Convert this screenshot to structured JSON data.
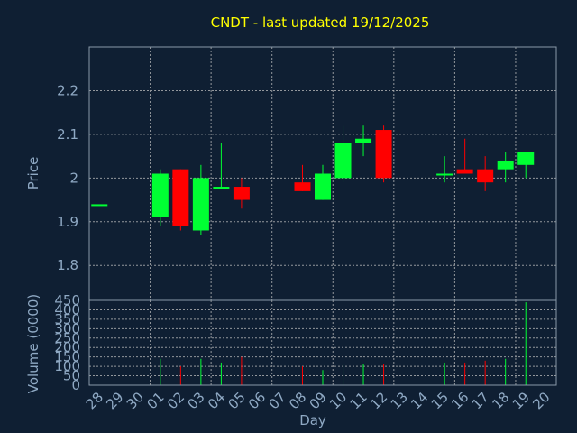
{
  "chart_data": {
    "type": "candlestick",
    "title": "CNDT - last updated 19/12/2025",
    "xlabel": "Day",
    "price_panel": {
      "ylabel": "Price",
      "ylim": [
        1.72,
        2.3
      ],
      "yticks": [
        "1.8",
        "1.9",
        "2",
        "2.1",
        "2.2"
      ],
      "ytick_values": [
        1.8,
        1.9,
        2.0,
        2.1,
        2.2
      ]
    },
    "volume_panel": {
      "ylabel": "Volume (0000)",
      "ylim": [
        0,
        450
      ],
      "yticks": [
        "0",
        "50",
        "100",
        "150",
        "200",
        "250",
        "300",
        "350",
        "400",
        "450"
      ],
      "ytick_values": [
        0,
        50,
        100,
        150,
        200,
        250,
        300,
        350,
        400,
        450
      ]
    },
    "x_labels": [
      "28",
      "29",
      "30",
      "01",
      "02",
      "03",
      "04",
      "05",
      "06",
      "07",
      "08",
      "09",
      "10",
      "11",
      "12",
      "13",
      "14",
      "15",
      "16",
      "17",
      "18",
      "19",
      "20"
    ],
    "candles": [
      {
        "day": "28",
        "open": 1.94,
        "high": 1.94,
        "low": 1.94,
        "close": 1.94,
        "volume": 0
      },
      {
        "day": "01",
        "open": 1.91,
        "high": 2.02,
        "low": 1.89,
        "close": 2.01,
        "volume": 140
      },
      {
        "day": "02",
        "open": 2.02,
        "high": 2.02,
        "low": 1.88,
        "close": 1.89,
        "volume": 100
      },
      {
        "day": "03",
        "open": 1.88,
        "high": 2.03,
        "low": 1.87,
        "close": 2.0,
        "volume": 140
      },
      {
        "day": "04",
        "open": 1.98,
        "high": 2.08,
        "low": 1.98,
        "close": 1.98,
        "volume": 120
      },
      {
        "day": "05",
        "open": 1.98,
        "high": 2.0,
        "low": 1.93,
        "close": 1.95,
        "volume": 150
      },
      {
        "day": "08",
        "open": 1.99,
        "high": 2.03,
        "low": 1.97,
        "close": 1.97,
        "volume": 100
      },
      {
        "day": "09",
        "open": 1.95,
        "high": 2.03,
        "low": 1.95,
        "close": 2.01,
        "volume": 80
      },
      {
        "day": "10",
        "open": 2.0,
        "high": 2.12,
        "low": 1.99,
        "close": 2.08,
        "volume": 110
      },
      {
        "day": "11",
        "open": 2.08,
        "high": 2.12,
        "low": 2.05,
        "close": 2.09,
        "volume": 110
      },
      {
        "day": "12",
        "open": 2.11,
        "high": 2.12,
        "low": 1.99,
        "close": 2.0,
        "volume": 110
      },
      {
        "day": "15",
        "open": 2.01,
        "high": 2.05,
        "low": 1.99,
        "close": 2.01,
        "volume": 120
      },
      {
        "day": "16",
        "open": 2.02,
        "high": 2.09,
        "low": 2.01,
        "close": 2.01,
        "volume": 120
      },
      {
        "day": "17",
        "open": 2.02,
        "high": 2.05,
        "low": 1.97,
        "close": 1.99,
        "volume": 130
      },
      {
        "day": "18",
        "open": 2.02,
        "high": 2.06,
        "low": 1.99,
        "close": 2.04,
        "volume": 140
      },
      {
        "day": "19",
        "open": 2.03,
        "high": 2.06,
        "low": 2.0,
        "close": 2.06,
        "volume": 440
      }
    ],
    "colors": {
      "background": "#0f1f33",
      "axis_text": "#8fa9c4",
      "title": "#ffff00",
      "grid": "#c0c0c0",
      "up": "#00ff33",
      "down": "#ff0000",
      "frame": "#8a9aa8"
    }
  }
}
